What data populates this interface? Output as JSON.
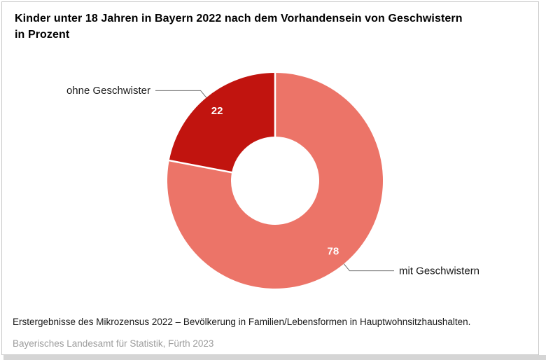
{
  "header": {
    "title": "Kinder unter 18 Jahren in Bayern 2022 nach dem Vorhandensein von Geschwistern",
    "unit": "in Prozent"
  },
  "chart_data": {
    "type": "pie",
    "subtype": "donut",
    "title": "Kinder unter 18 Jahren in Bayern 2022 nach dem Vorhandensein von Geschwistern",
    "unit_label": "in Prozent",
    "start_angle_deg": 0,
    "direction": "clockwise",
    "hole_ratio": 0.41,
    "legend_position": "callout-labels",
    "value_label_color": "#FFFFFF",
    "callout_line_color": "#6E6E6E",
    "segments": [
      {
        "label": "mit Geschwistern",
        "value": 78,
        "color": "#EC7468",
        "callout_side": "right"
      },
      {
        "label": "ohne Geschwister",
        "value": 22,
        "color": "#C1140F",
        "callout_side": "left"
      }
    ]
  },
  "footer": {
    "source": "Erstergebnisse des Mikrozensus 2022 – Bevölkerung in Familien/Lebensformen in Hauptwohnsitzhaushalten.",
    "publisher": "Bayerisches Landesamt für Statistik, Fürth 2023"
  }
}
